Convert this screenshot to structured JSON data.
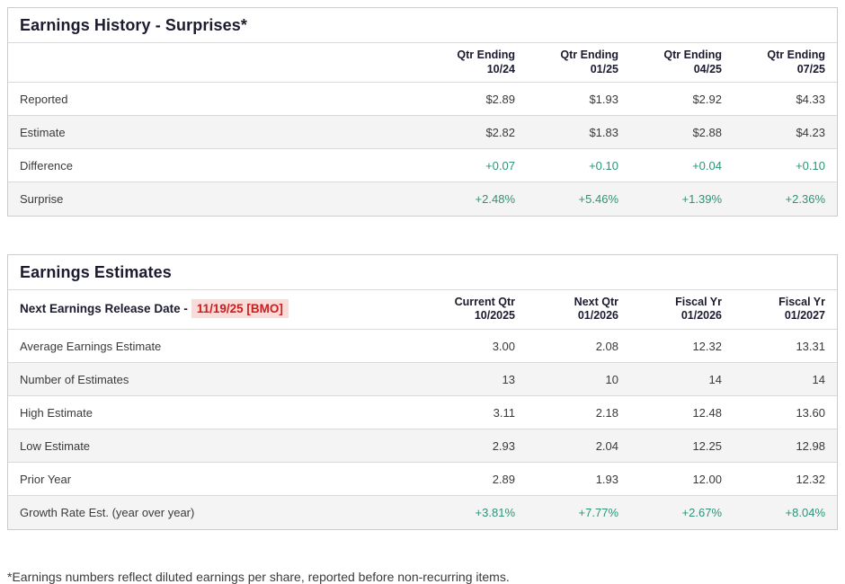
{
  "colors": {
    "positive_value": "#2e9377",
    "alert_text": "#cc1e1e",
    "alert_background": "#fadbd8",
    "border": "#cbcbcb",
    "row_stripe": "#f4f4f4",
    "heading_text": "#1b1b2f",
    "body_text": "#3a3a3a"
  },
  "history_table": {
    "title": "Earnings History - Surprises*",
    "columns": [
      {
        "line1": "Qtr Ending",
        "line2": "10/24"
      },
      {
        "line1": "Qtr Ending",
        "line2": "01/25"
      },
      {
        "line1": "Qtr Ending",
        "line2": "04/25"
      },
      {
        "line1": "Qtr Ending",
        "line2": "07/25"
      }
    ],
    "rows": [
      {
        "label": "Reported",
        "values": [
          "$2.89",
          "$1.93",
          "$2.92",
          "$4.33"
        ]
      },
      {
        "label": "Estimate",
        "values": [
          "$2.82",
          "$1.83",
          "$2.88",
          "$4.23"
        ]
      },
      {
        "label": "Difference",
        "values": [
          "+0.07",
          "+0.10",
          "+0.04",
          "+0.10"
        ]
      },
      {
        "label": "Surprise",
        "values": [
          "+2.48%",
          "+5.46%",
          "+1.39%",
          "+2.36%"
        ]
      }
    ]
  },
  "estimates_table": {
    "title": "Earnings Estimates",
    "release_date_label": "Next Earnings Release Date -",
    "release_date_value": "11/19/25 [BMO]",
    "columns": [
      {
        "line1": "Current Qtr",
        "line2": "10/2025"
      },
      {
        "line1": "Next Qtr",
        "line2": "01/2026"
      },
      {
        "line1": "Fiscal Yr",
        "line2": "01/2026"
      },
      {
        "line1": "Fiscal Yr",
        "line2": "01/2027"
      }
    ],
    "rows": [
      {
        "label": "Average Earnings Estimate",
        "values": [
          "3.00",
          "2.08",
          "12.32",
          "13.31"
        ]
      },
      {
        "label": "Number of Estimates",
        "values": [
          "13",
          "10",
          "14",
          "14"
        ]
      },
      {
        "label": "High Estimate",
        "values": [
          "3.11",
          "2.18",
          "12.48",
          "13.60"
        ]
      },
      {
        "label": "Low Estimate",
        "values": [
          "2.93",
          "2.04",
          "12.25",
          "12.98"
        ]
      },
      {
        "label": "Prior Year",
        "values": [
          "2.89",
          "1.93",
          "12.00",
          "12.32"
        ]
      },
      {
        "label": "Growth Rate Est. (year over year)",
        "values": [
          "+3.81%",
          "+7.77%",
          "+2.67%",
          "+8.04%"
        ]
      }
    ]
  },
  "footnote": "*Earnings numbers reflect diluted earnings per share, reported before non-recurring items."
}
